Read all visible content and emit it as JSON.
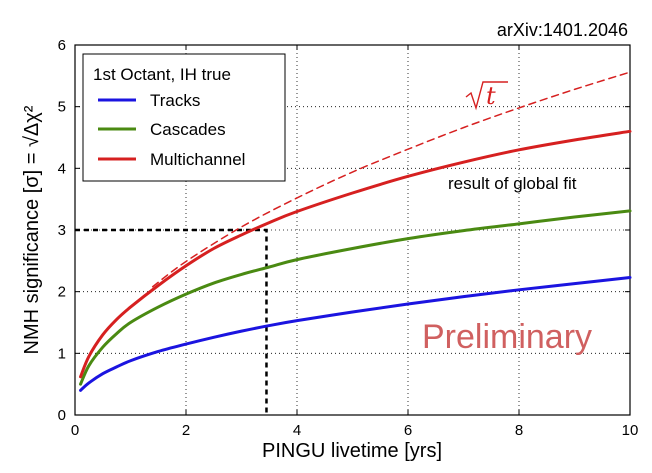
{
  "chart_data": {
    "type": "line",
    "xlabel": "PINGU livetime [yrs]",
    "ylabel": "NMH significance [σ] = √Δχ²",
    "xlim": [
      0,
      10
    ],
    "ylim": [
      0,
      6
    ],
    "x_ticks": [
      0,
      2,
      4,
      6,
      8,
      10
    ],
    "y_ticks": [
      0,
      1,
      2,
      3,
      4,
      5,
      6
    ],
    "grid": true,
    "legend_title": "1st Octant, IH true",
    "legend_position": "top-left",
    "series": [
      {
        "name": "Tracks",
        "color": "#1b14e0",
        "style": "solid",
        "x": [
          0.1,
          0.25,
          0.5,
          0.75,
          1,
          1.5,
          2,
          2.5,
          3,
          3.5,
          4,
          5,
          6,
          7,
          8,
          9,
          10
        ],
        "values": [
          0.4,
          0.52,
          0.67,
          0.78,
          0.88,
          1.03,
          1.15,
          1.26,
          1.36,
          1.45,
          1.53,
          1.67,
          1.8,
          1.92,
          2.03,
          2.13,
          2.23
        ]
      },
      {
        "name": "Cascades",
        "color": "#4a8a12",
        "style": "solid",
        "x": [
          0.1,
          0.25,
          0.5,
          0.75,
          1,
          1.5,
          2,
          2.5,
          3,
          3.5,
          4,
          5,
          6,
          7,
          8,
          9,
          10
        ],
        "values": [
          0.5,
          0.8,
          1.1,
          1.32,
          1.5,
          1.75,
          1.96,
          2.14,
          2.28,
          2.4,
          2.52,
          2.7,
          2.86,
          2.99,
          3.1,
          3.21,
          3.31
        ]
      },
      {
        "name": "Multichannel",
        "color": "#d62020",
        "style": "solid",
        "x": [
          0.1,
          0.25,
          0.5,
          0.75,
          1,
          1.5,
          2,
          2.5,
          3,
          3.5,
          4,
          5,
          6,
          7,
          8,
          9,
          10
        ],
        "values": [
          0.62,
          0.95,
          1.3,
          1.55,
          1.75,
          2.1,
          2.42,
          2.7,
          2.92,
          3.12,
          3.3,
          3.6,
          3.87,
          4.1,
          4.3,
          4.46,
          4.6
        ]
      },
      {
        "name": "sqrt(t) scaling",
        "color": "#d62020",
        "style": "dashed",
        "x": [
          1.4,
          2,
          3,
          4,
          5,
          6,
          7,
          8,
          9,
          10
        ],
        "values": [
          2.08,
          2.49,
          3.05,
          3.52,
          3.94,
          4.31,
          4.66,
          4.98,
          5.28,
          5.56
        ]
      }
    ],
    "reference_lines": {
      "threshold_sigma": 3,
      "threshold_livetime": 3.45
    },
    "annotations": {
      "arxiv": "arXiv:1401.2046",
      "sqrt_label": "√t",
      "global_fit": "result of global fit",
      "preliminary": "Preliminary"
    }
  }
}
